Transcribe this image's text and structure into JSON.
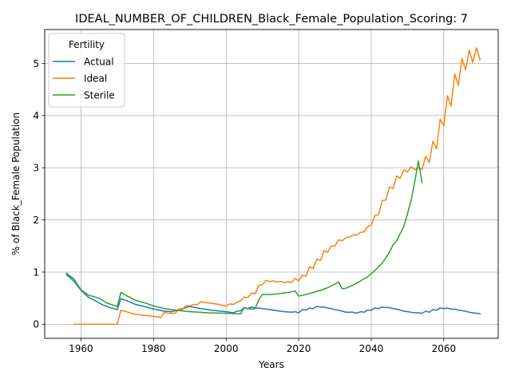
{
  "chart_data": {
    "type": "line",
    "title": "IDEAL_NUMBER_OF_CHILDREN_Black_Female_Population_Scoring: 7",
    "xlabel": "Years",
    "ylabel": "% of Black_Female Population",
    "xlim": [
      1950,
      2075
    ],
    "ylim": [
      -0.27,
      5.65
    ],
    "xticks": [
      1960,
      1980,
      2000,
      2020,
      2040,
      2060
    ],
    "yticks": [
      0,
      1,
      2,
      3,
      4,
      5
    ],
    "grid": true,
    "legend": {
      "title": "Fertility",
      "position": "top-left"
    },
    "colors": {
      "Actual": "#1f77b4",
      "Ideal": "#ff7f0e",
      "Sterile": "#2ca02c"
    },
    "series": [
      {
        "name": "Actual",
        "x": [
          1956,
          1958,
          1960,
          1962,
          1964,
          1966,
          1968,
          1970,
          1971,
          1973,
          1975,
          1978,
          1980,
          1983,
          1985,
          1988,
          1990,
          1993,
          1996,
          2000,
          2002,
          2003,
          2004,
          2005,
          2006,
          2007,
          2008,
          2009,
          2010,
          2012,
          2014,
          2016,
          2018,
          2019,
          2020,
          2021,
          2022,
          2023,
          2024,
          2025,
          2026,
          2027,
          2028,
          2029,
          2030,
          2031,
          2032,
          2033,
          2034,
          2035,
          2036,
          2037,
          2038,
          2039,
          2040,
          2041,
          2042,
          2043,
          2044,
          2045,
          2046,
          2047,
          2048,
          2049,
          2050,
          2051,
          2052,
          2053,
          2054,
          2055,
          2056,
          2057,
          2058,
          2059,
          2060,
          2061,
          2062,
          2063,
          2064,
          2065,
          2066,
          2067,
          2068,
          2069,
          2070
        ],
        "y": [
          0.95,
          0.83,
          0.65,
          0.52,
          0.45,
          0.37,
          0.32,
          0.28,
          0.49,
          0.44,
          0.38,
          0.33,
          0.29,
          0.25,
          0.24,
          0.3,
          0.34,
          0.3,
          0.27,
          0.24,
          0.22,
          0.25,
          0.26,
          0.32,
          0.3,
          0.33,
          0.31,
          0.31,
          0.3,
          0.28,
          0.26,
          0.24,
          0.23,
          0.24,
          0.22,
          0.28,
          0.27,
          0.31,
          0.3,
          0.34,
          0.33,
          0.33,
          0.31,
          0.3,
          0.28,
          0.27,
          0.25,
          0.23,
          0.23,
          0.23,
          0.21,
          0.24,
          0.23,
          0.27,
          0.27,
          0.31,
          0.3,
          0.33,
          0.32,
          0.32,
          0.3,
          0.29,
          0.27,
          0.25,
          0.24,
          0.23,
          0.22,
          0.22,
          0.21,
          0.25,
          0.23,
          0.28,
          0.27,
          0.31,
          0.3,
          0.31,
          0.29,
          0.29,
          0.27,
          0.26,
          0.25,
          0.23,
          0.22,
          0.21,
          0.2
        ]
      },
      {
        "name": "Ideal",
        "x": [
          1958,
          1960,
          1965,
          1970,
          1971,
          1973,
          1975,
          1980,
          1982,
          1983,
          1984,
          1986,
          1987,
          1988,
          1989,
          1990,
          1991,
          1992,
          1993,
          1994,
          1996,
          1998,
          1999,
          2000,
          2001,
          2002,
          2003,
          2004,
          2005,
          2006,
          2007,
          2008,
          2009,
          2010,
          2011,
          2012,
          2013,
          2014,
          2015,
          2016,
          2017,
          2018,
          2019,
          2020,
          2021,
          2022,
          2023,
          2024,
          2025,
          2026,
          2027,
          2028,
          2029,
          2030,
          2031,
          2032,
          2033,
          2034,
          2035,
          2036,
          2037,
          2038,
          2039,
          2040,
          2041,
          2042,
          2043,
          2044,
          2045,
          2046,
          2047,
          2048,
          2049,
          2050,
          2051,
          2052,
          2053,
          2054,
          2055,
          2056,
          2057,
          2058,
          2059,
          2060,
          2061,
          2062,
          2063,
          2064,
          2065,
          2066,
          2067,
          2068,
          2069,
          2070
        ],
        "y": [
          0.0,
          0.0,
          0.0,
          0.0,
          0.27,
          0.23,
          0.19,
          0.15,
          0.13,
          0.23,
          0.21,
          0.21,
          0.29,
          0.28,
          0.36,
          0.35,
          0.38,
          0.37,
          0.43,
          0.42,
          0.4,
          0.38,
          0.36,
          0.35,
          0.39,
          0.38,
          0.42,
          0.45,
          0.52,
          0.51,
          0.6,
          0.58,
          0.75,
          0.76,
          0.84,
          0.82,
          0.83,
          0.81,
          0.82,
          0.8,
          0.81,
          0.8,
          0.88,
          0.83,
          0.94,
          0.92,
          1.1,
          1.07,
          1.25,
          1.22,
          1.41,
          1.38,
          1.5,
          1.5,
          1.62,
          1.6,
          1.66,
          1.67,
          1.71,
          1.71,
          1.76,
          1.77,
          1.87,
          1.9,
          2.08,
          2.1,
          2.37,
          2.38,
          2.63,
          2.6,
          2.84,
          2.8,
          2.96,
          2.92,
          3.02,
          2.96,
          3.0,
          2.97,
          3.22,
          3.1,
          3.51,
          3.36,
          3.93,
          3.8,
          4.38,
          4.18,
          4.8,
          4.58,
          5.1,
          4.88,
          5.25,
          5.02,
          5.3,
          5.07
        ]
      },
      {
        "name": "Sterile",
        "x": [
          1956,
          1958,
          1960,
          1962,
          1965,
          1967,
          1970,
          1971,
          1973,
          1975,
          1978,
          1980,
          1983,
          1986,
          1990,
          1995,
          2000,
          2003,
          2004,
          2005,
          2006,
          2007,
          2008,
          2009,
          2010,
          2012,
          2014,
          2016,
          2018,
          2019,
          2020,
          2022,
          2024,
          2026,
          2028,
          2030,
          2031,
          2032,
          2033,
          2035,
          2037,
          2039,
          2040,
          2041,
          2042,
          2043,
          2044,
          2045,
          2046,
          2047,
          2048,
          2049,
          2050,
          2051,
          2052,
          2053,
          2054
        ],
        "y": [
          0.98,
          0.87,
          0.66,
          0.56,
          0.5,
          0.41,
          0.34,
          0.61,
          0.53,
          0.46,
          0.4,
          0.35,
          0.3,
          0.27,
          0.24,
          0.22,
          0.21,
          0.2,
          0.2,
          0.32,
          0.3,
          0.29,
          0.3,
          0.47,
          0.57,
          0.57,
          0.58,
          0.6,
          0.62,
          0.64,
          0.54,
          0.57,
          0.61,
          0.65,
          0.7,
          0.77,
          0.81,
          0.68,
          0.69,
          0.75,
          0.83,
          0.91,
          0.97,
          1.03,
          1.1,
          1.17,
          1.27,
          1.38,
          1.52,
          1.6,
          1.74,
          1.88,
          2.12,
          2.38,
          2.74,
          3.13,
          2.71
        ]
      }
    ]
  }
}
